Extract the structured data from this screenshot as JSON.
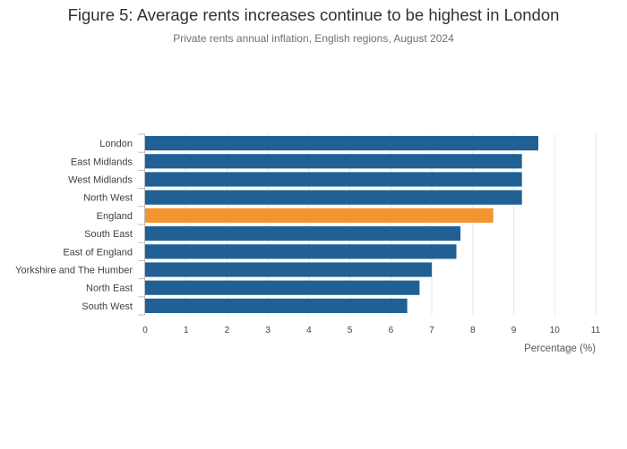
{
  "chart_data": {
    "type": "bar",
    "orientation": "horizontal",
    "title": "Figure 5: Average rents increases continue to be highest in London",
    "subtitle": "Private rents annual inflation, English regions, August 2024",
    "xlabel": "Percentage (%)",
    "ylabel": "",
    "xlim": [
      0,
      11
    ],
    "xticks": [
      0,
      1,
      2,
      3,
      4,
      5,
      6,
      7,
      8,
      9,
      10,
      11
    ],
    "grid": true,
    "categories": [
      "London",
      "East Midlands",
      "West Midlands",
      "North West",
      "England",
      "South East",
      "East of England",
      "Yorkshire and The Humber",
      "North East",
      "South West"
    ],
    "values": [
      9.6,
      9.2,
      9.2,
      9.2,
      8.5,
      7.7,
      7.6,
      7.0,
      6.7,
      6.4
    ],
    "colors": {
      "region": "#206095",
      "england": "#f39431",
      "grid": "#e6e6e6",
      "axis": "#bebebe"
    },
    "highlight": "England"
  }
}
